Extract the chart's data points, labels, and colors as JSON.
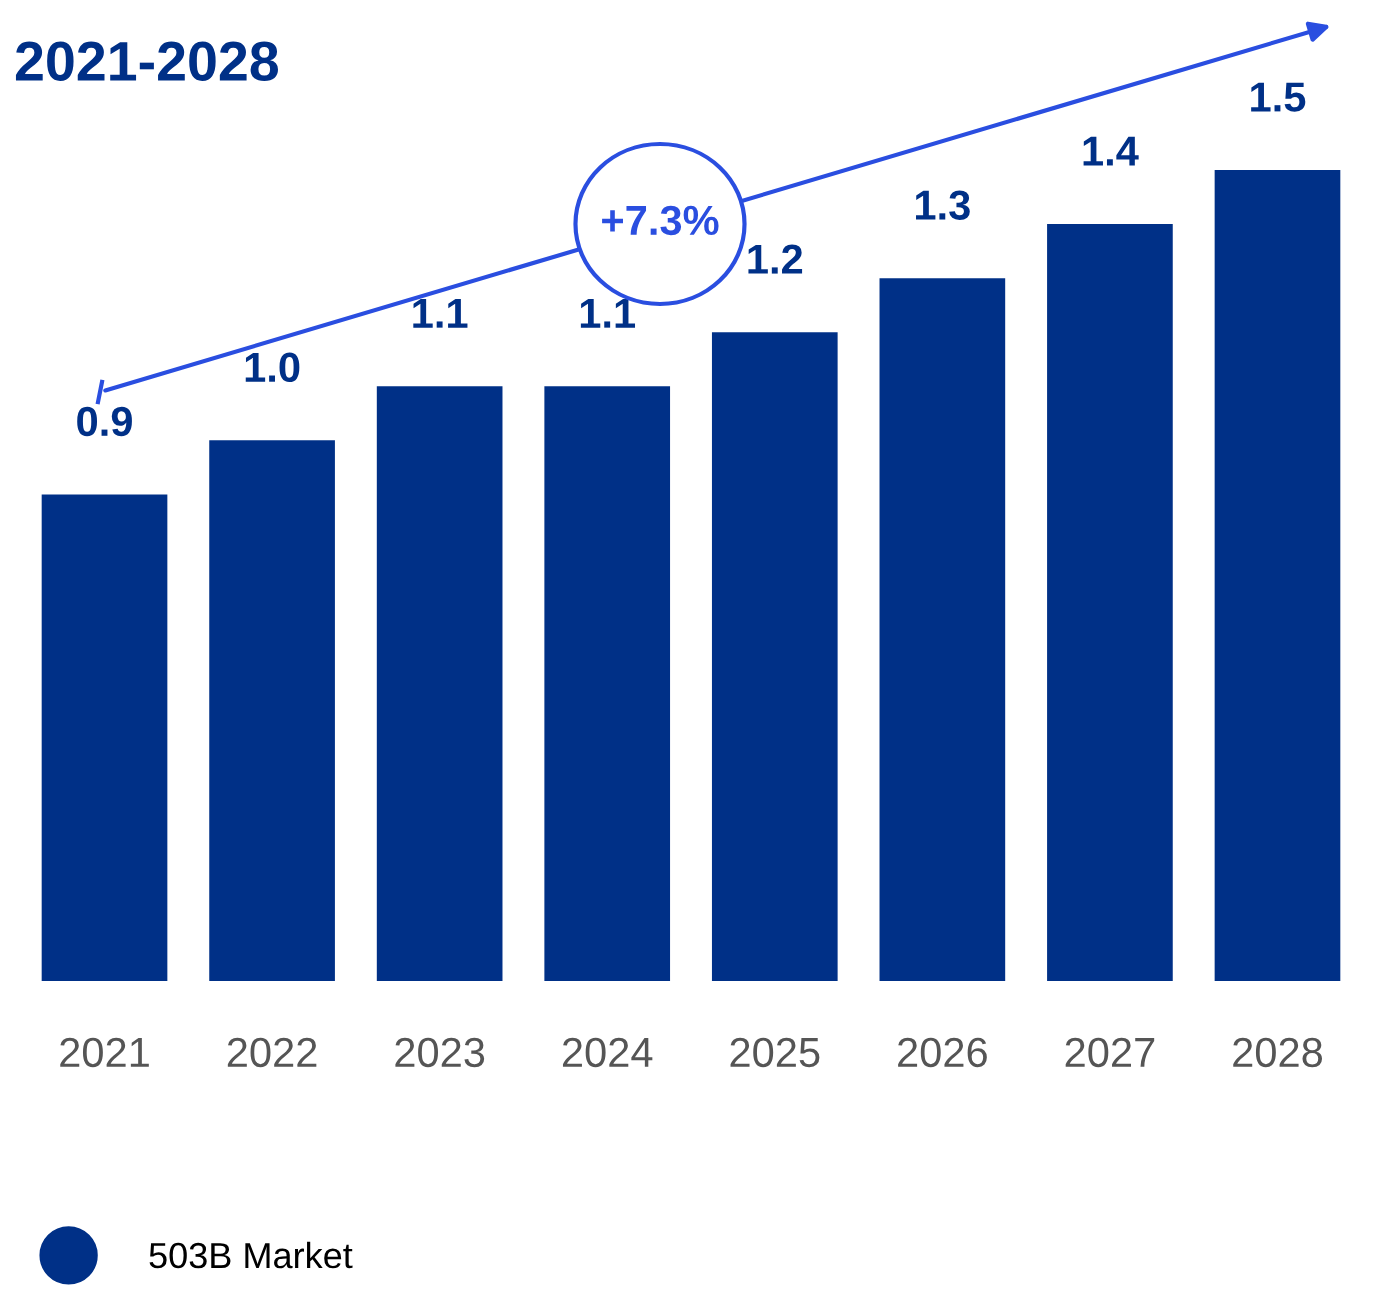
{
  "chart_data": {
    "type": "bar",
    "title": "2021-2028",
    "categories": [
      "2021",
      "2022",
      "2023",
      "2024",
      "2025",
      "2026",
      "2027",
      "2028"
    ],
    "series": [
      {
        "name": "503B Market",
        "color": "#003087",
        "values": [
          0.9,
          1.0,
          1.1,
          1.1,
          1.2,
          1.3,
          1.4,
          1.5
        ],
        "value_labels": [
          "0.9",
          "1.0",
          "1.1",
          "1.1",
          "1.2",
          "1.3",
          "1.4",
          "1.5"
        ]
      }
    ],
    "legend": "bottom left",
    "grid": false,
    "annotations": [
      "+7.3%"
    ]
  }
}
